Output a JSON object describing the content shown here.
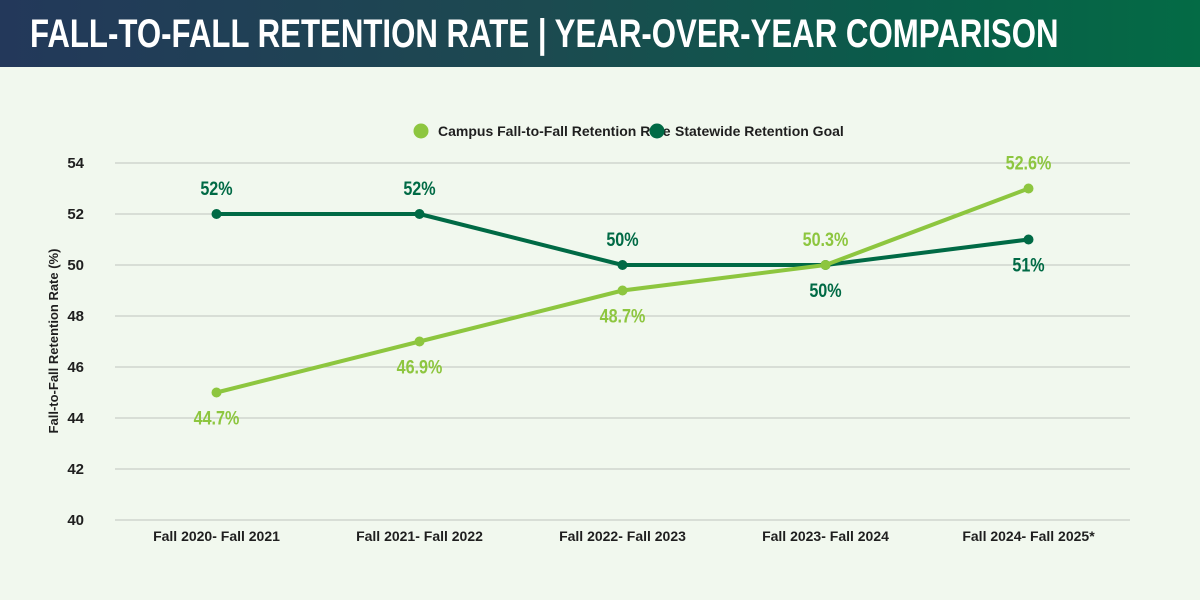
{
  "header": {
    "title": "FALL-TO-FALL RETENTION RATE | YEAR-OVER-YEAR COMPARISON"
  },
  "colors": {
    "campus": "#8dc63f",
    "statewide": "#006a45",
    "grid": "#c9cec7",
    "background": "#f1f8ee"
  },
  "chart_data": {
    "type": "line",
    "title": "FALL-TO-FALL RETENTION RATE | YEAR-OVER-YEAR COMPARISON",
    "xlabel": "",
    "ylabel": "Fall-to-Fall Retention Rate (%)",
    "ylim": [
      40,
      54
    ],
    "yticks": [
      40,
      42,
      44,
      46,
      48,
      50,
      52,
      54
    ],
    "grid": true,
    "legend_position": "top-center",
    "categories": [
      "Fall 2020- Fall 2021",
      "Fall 2021- Fall 2022",
      "Fall 2022- Fall 2023",
      "Fall 2023- Fall 2024",
      "Fall 2024- Fall 2025*"
    ],
    "series": [
      {
        "name": "Campus Fall-to-Fall Retention Rate",
        "color": "#8dc63f",
        "values": [
          45,
          47,
          49,
          50,
          53
        ],
        "labels": [
          "44.7%",
          "46.9%",
          "48.7%",
          "50.3%",
          "52.6%"
        ],
        "label_side": [
          "below",
          "below",
          "below",
          "above",
          "above"
        ]
      },
      {
        "name": "Statewide Retention Goal",
        "color": "#006a45",
        "values": [
          52,
          52,
          50,
          50,
          51
        ],
        "labels": [
          "52%",
          "52%",
          "50%",
          "50%",
          "51%"
        ],
        "label_side": [
          "above",
          "above",
          "above",
          "below",
          "below"
        ]
      }
    ]
  }
}
